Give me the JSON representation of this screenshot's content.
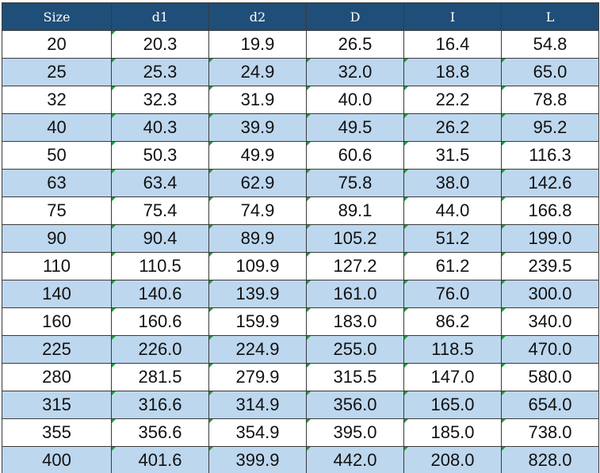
{
  "table": {
    "header": [
      "Size",
      "d1",
      "d2",
      "D",
      "I",
      "L"
    ],
    "rows": [
      [
        "20",
        "20.3",
        "19.9",
        "26.5",
        "16.4",
        "54.8"
      ],
      [
        "25",
        "25.3",
        "24.9",
        "32.0",
        "18.8",
        "65.0"
      ],
      [
        "32",
        "32.3",
        "31.9",
        "40.0",
        "22.2",
        "78.8"
      ],
      [
        "40",
        "40.3",
        "39.9",
        "49.5",
        "26.2",
        "95.2"
      ],
      [
        "50",
        "50.3",
        "49.9",
        "60.6",
        "31.5",
        "116.3"
      ],
      [
        "63",
        "63.4",
        "62.9",
        "75.8",
        "38.0",
        "142.6"
      ],
      [
        "75",
        "75.4",
        "74.9",
        "89.1",
        "44.0",
        "166.8"
      ],
      [
        "90",
        "90.4",
        "89.9",
        "105.2",
        "51.2",
        "199.0"
      ],
      [
        "110",
        "110.5",
        "109.9",
        "127.2",
        "61.2",
        "239.5"
      ],
      [
        "140",
        "140.6",
        "139.9",
        "161.0",
        "76.0",
        "300.0"
      ],
      [
        "160",
        "160.6",
        "159.9",
        "183.0",
        "86.2",
        "340.0"
      ],
      [
        "225",
        "226.0",
        "224.9",
        "255.0",
        "118.5",
        "470.0"
      ],
      [
        "280",
        "281.5",
        "279.9",
        "315.5",
        "147.0",
        "580.0"
      ],
      [
        "315",
        "316.6",
        "314.9",
        "356.0",
        "165.0",
        "654.0"
      ],
      [
        "355",
        "356.6",
        "354.9",
        "395.0",
        "185.0",
        "738.0"
      ],
      [
        "400",
        "401.6",
        "399.9",
        "442.0",
        "208.0",
        "828.0"
      ]
    ]
  }
}
